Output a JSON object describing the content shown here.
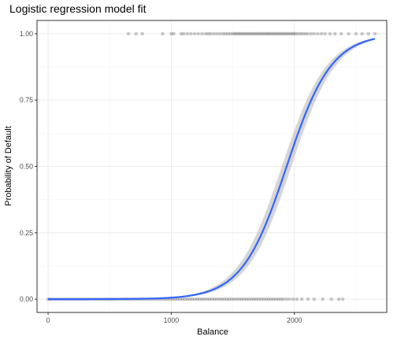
{
  "chart_data": {
    "type": "scatter",
    "title": "Logistic regression model fit",
    "xlabel": "Balance",
    "ylabel": "Probability of Default",
    "xlim": [
      -90,
      2750
    ],
    "ylim": [
      -0.05,
      1.05
    ],
    "x_ticks": [
      0,
      1000,
      2000
    ],
    "x_tick_labels": [
      "0",
      "1000",
      "2000"
    ],
    "y_ticks": [
      0,
      0.25,
      0.5,
      0.75,
      1
    ],
    "y_tick_labels": [
      "0.00",
      "0.25",
      "0.50",
      "0.75",
      "1.00"
    ],
    "grid": true,
    "points": {
      "color": "#000000",
      "alpha": 0.2,
      "default_yes_balance": [
        652,
        714,
        765,
        930,
        1000,
        1020,
        1080,
        1100,
        1130,
        1160,
        1190,
        1220,
        1250,
        1280,
        1300,
        1320,
        1345,
        1370,
        1395,
        1420,
        1440,
        1460,
        1480,
        1500,
        1515,
        1530,
        1545,
        1560,
        1575,
        1590,
        1605,
        1620,
        1635,
        1650,
        1665,
        1680,
        1695,
        1710,
        1725,
        1740,
        1755,
        1770,
        1785,
        1800,
        1815,
        1830,
        1845,
        1860,
        1875,
        1890,
        1905,
        1920,
        1935,
        1950,
        1965,
        1980,
        1995,
        2010,
        2030,
        2050,
        2070,
        2090,
        2110,
        2135,
        2160,
        2190,
        2220,
        2250,
        2290,
        2330,
        2380,
        2440,
        2500,
        2550,
        2600,
        2654
      ],
      "default_no_balance": [
        0,
        15,
        30,
        50,
        70,
        90,
        110,
        130,
        150,
        170,
        190,
        210,
        230,
        250,
        270,
        290,
        310,
        330,
        350,
        370,
        390,
        410,
        430,
        450,
        470,
        490,
        510,
        530,
        550,
        570,
        590,
        610,
        630,
        650,
        670,
        690,
        710,
        730,
        750,
        770,
        790,
        810,
        830,
        850,
        870,
        890,
        910,
        930,
        950,
        970,
        990,
        1010,
        1030,
        1050,
        1070,
        1090,
        1110,
        1130,
        1150,
        1170,
        1190,
        1210,
        1230,
        1250,
        1270,
        1290,
        1310,
        1330,
        1350,
        1370,
        1390,
        1410,
        1430,
        1450,
        1470,
        1490,
        1510,
        1530,
        1550,
        1570,
        1590,
        1610,
        1630,
        1650,
        1670,
        1690,
        1710,
        1730,
        1750,
        1770,
        1790,
        1810,
        1830,
        1850,
        1870,
        1890,
        1910,
        1935,
        1960,
        1990,
        2020,
        2060,
        2110,
        2160,
        2230,
        2300,
        2360,
        2392
      ]
    },
    "fit": {
      "type": "logistic",
      "color": "#3366ff",
      "band_color": "#999999",
      "band_alpha": 0.4,
      "intercept": -10.6513,
      "slope": 0.005499,
      "x_range": [
        0,
        2654
      ]
    }
  }
}
